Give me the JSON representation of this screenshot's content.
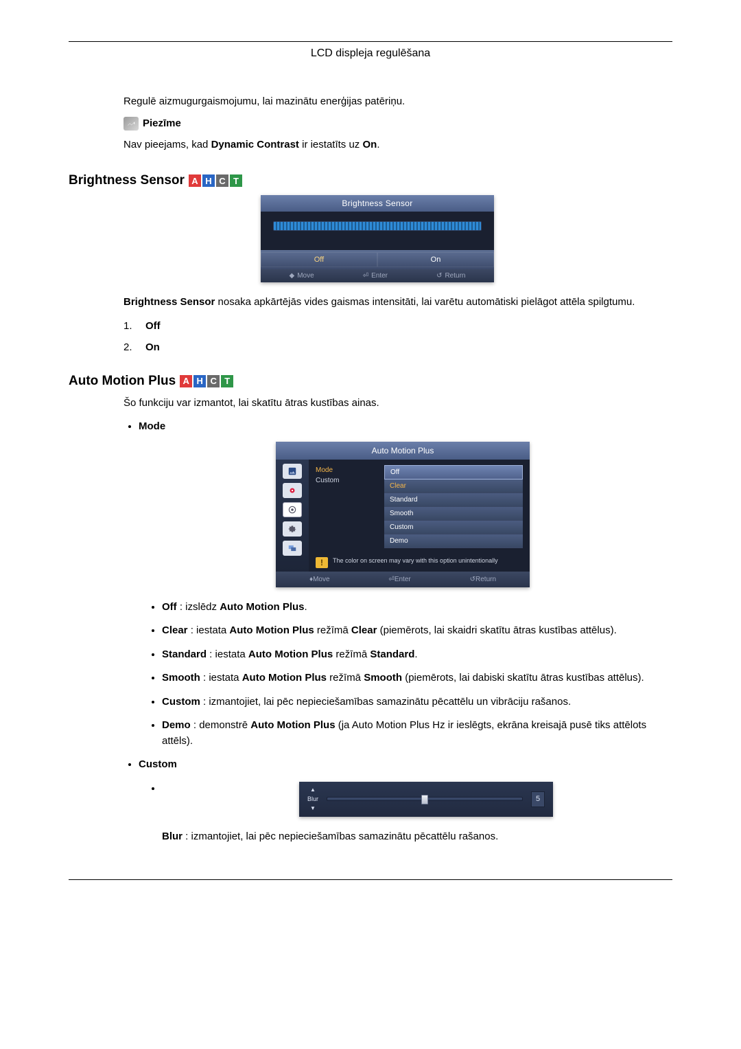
{
  "page_title": "LCD displeja regulēšana",
  "intro_para": "Regulē aizmugurgaismojumu, lai mazinātu enerģijas patēriņu.",
  "note_label": "Piezīme",
  "note_text_pre": "Nav pieejams, kad ",
  "note_text_bold": "Dynamic Contrast",
  "note_text_mid": " ir iestatīts uz ",
  "note_text_bold2": "On",
  "note_text_post": ".",
  "mode_badges": {
    "values": [
      "A",
      "H",
      "C",
      "T"
    ],
    "colors": [
      "#e03a3a",
      "#2a66c4",
      "#6a6a6a",
      "#2e9648"
    ]
  },
  "brightness_sensor": {
    "heading": "Brightness Sensor",
    "osd_title": "Brightness Sensor",
    "opt_off": "Off",
    "opt_on": "On",
    "footer_move": "Move",
    "footer_enter": "Enter",
    "footer_return": "Return",
    "desc_pre": "Brightness Sensor",
    "desc_rest": " nosaka apkārtējās vides gaismas intensitāti, lai varētu automātiski pielāgot attēla spilgtumu.",
    "list": {
      "n1": "1.",
      "v1": "Off",
      "n2": "2.",
      "v2": "On"
    }
  },
  "auto_motion_plus": {
    "heading": "Auto Motion Plus",
    "intro": "Šo funkciju var izmantot, lai skatītu ātras kustības ainas.",
    "mode_label": "Mode",
    "osd_title": "Auto Motion Plus",
    "left_mode": "Mode",
    "left_custom": "Custom",
    "options": [
      "Off",
      "Clear",
      "Standard",
      "Smooth",
      "Custom",
      "Demo"
    ],
    "warn_text": "The color on screen may vary with this option unintentionally",
    "footer_move": "Move",
    "footer_enter": "Enter",
    "footer_return": "Return",
    "items": {
      "off_l": "Off",
      "off_t": " : izslēdz ",
      "off_b2": "Auto Motion Plus",
      "off_t2": ".",
      "clear_l": "Clear",
      "clear_t": " : iestata ",
      "clear_b2": "Auto Motion Plus",
      "clear_t2": " režīmā ",
      "clear_b3": "Clear",
      "clear_t3": " (piemērots, lai skaidri skatītu ātras kustības attēlus).",
      "std_l": "Standard",
      "std_t": " : iestata ",
      "std_b2": "Auto Motion Plus",
      "std_t2": " režīmā ",
      "std_b3": "Standard",
      "std_t3": ".",
      "smooth_l": "Smooth",
      "smooth_t": " : iestata ",
      "smooth_b2": "Auto Motion Plus",
      "smooth_t2": " režīmā ",
      "smooth_b3": "Smooth",
      "smooth_t3": " (piemērots, lai dabiski skatītu ātras kustības attēlus).",
      "custom_l": "Custom",
      "custom_t": " : izmantojiet, lai pēc nepieciešamības samazinātu pēcattēlu un vibrāciju rašanos.",
      "demo_l": "Demo",
      "demo_t": " : demonstrē ",
      "demo_b2": "Auto Motion Plus",
      "demo_t2": " (ja Auto Motion Plus Hz ir ieslēgts, ekrāna kreisajā pusē tiks attēlots attēls)."
    },
    "custom_label": "Custom",
    "blur": {
      "label": "Blur",
      "value": "5",
      "percent": 50,
      "desc_l": "Blur",
      "desc_t": " : izmantojiet, lai pēc nepieciešamības samazinātu pēcattēlu rašanos."
    }
  }
}
